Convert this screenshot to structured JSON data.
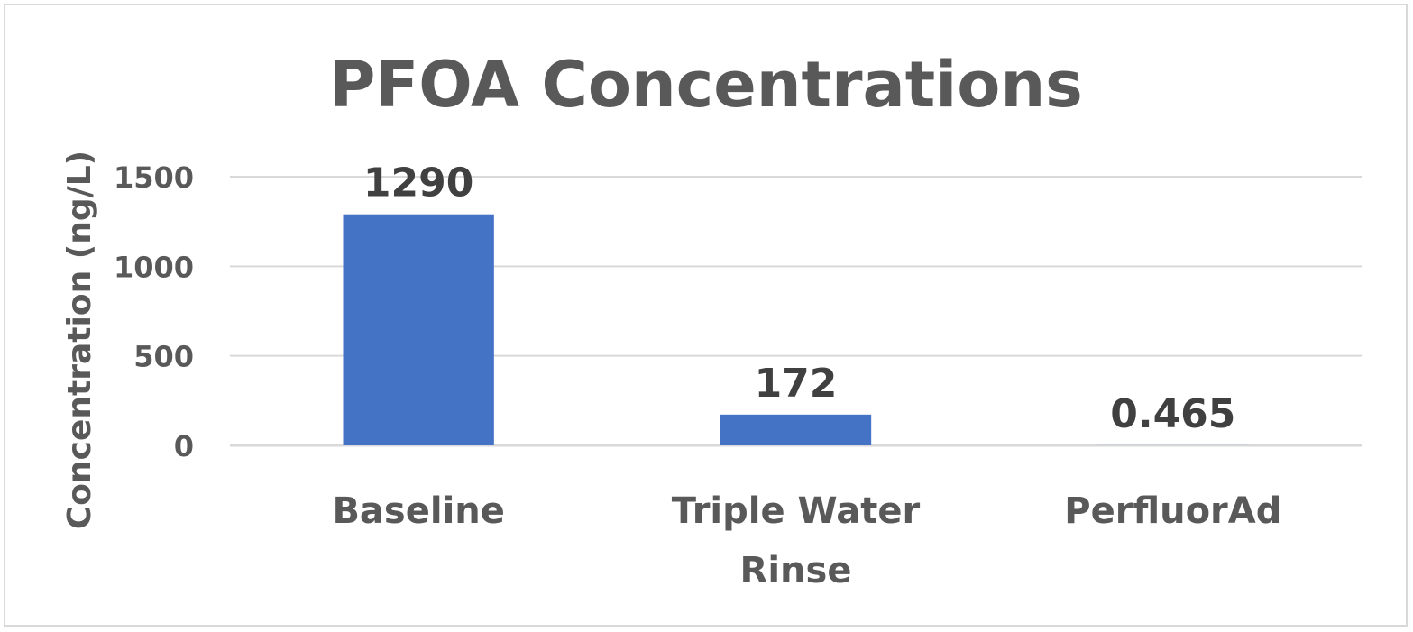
{
  "chart_data": {
    "type": "bar",
    "title": "PFOA Concentrations",
    "xlabel": "",
    "ylabel": "Concentration (ng/L)",
    "categories": [
      [
        "Baseline"
      ],
      [
        "Triple Water",
        "Rinse"
      ],
      [
        "PerfluorAd"
      ]
    ],
    "values": [
      1290,
      172,
      0.465
    ],
    "data_labels": [
      "1290",
      "172",
      "0.465"
    ],
    "ylim": [
      0,
      1500
    ],
    "yticks": [
      0,
      500,
      1000,
      1500
    ],
    "grid": true,
    "legend": "none",
    "bar_color": "#4472C4",
    "grid_color": "#d9d9d9"
  }
}
